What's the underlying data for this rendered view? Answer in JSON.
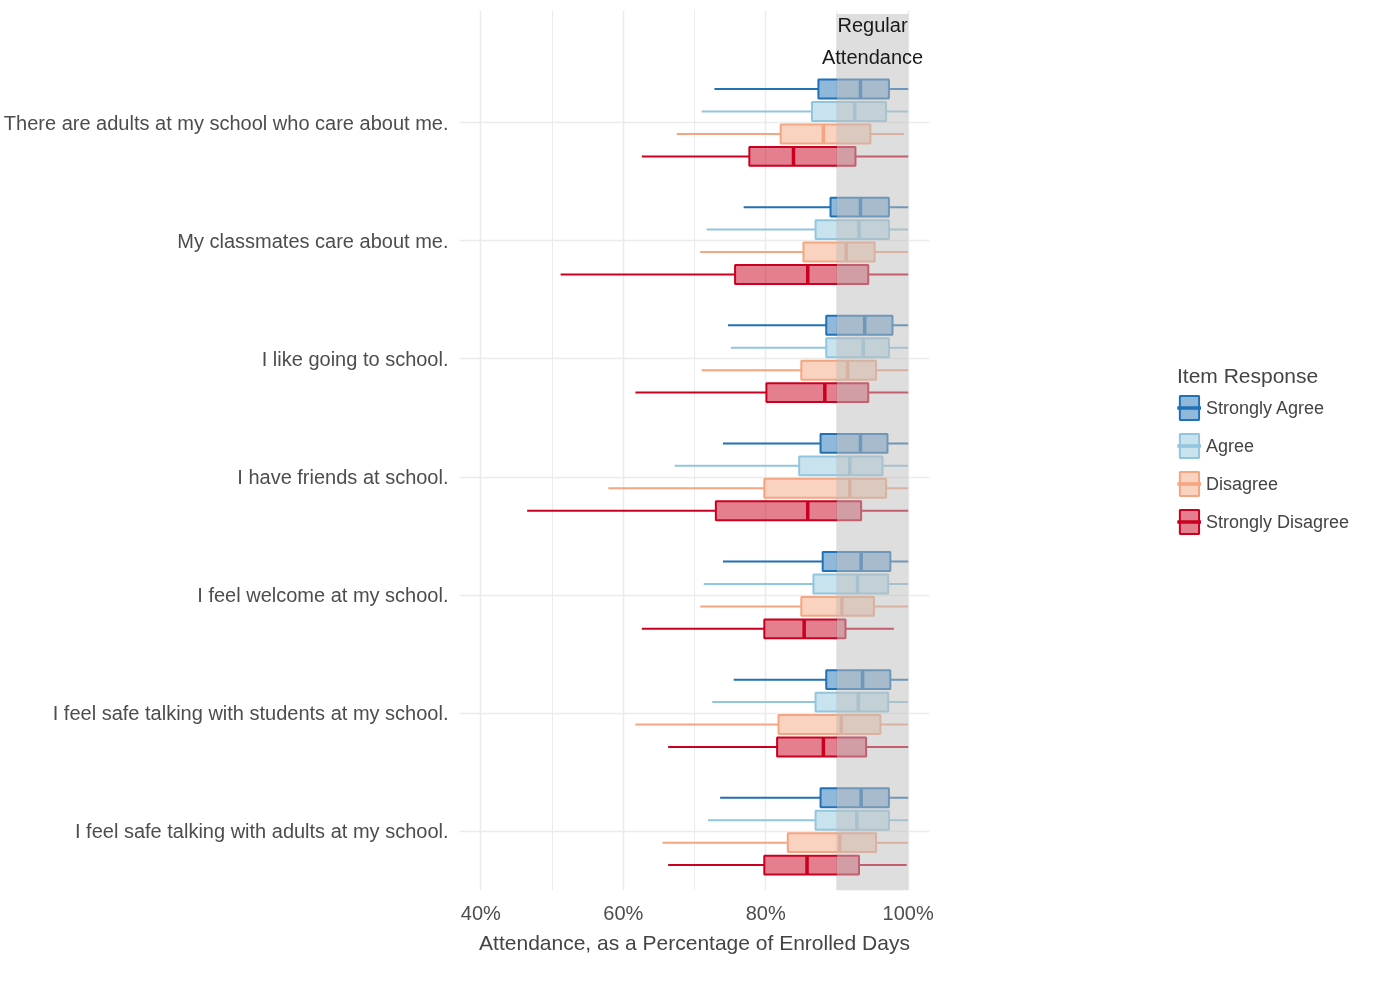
{
  "chart_data": {
    "type": "box",
    "orientation": "horizontal",
    "xlabel": "Attendance, as a Percentage of Enrolled Days",
    "legend_title": "Item Response",
    "categories": [
      "There are adults at my school who care about me.",
      "My classmates care about me.",
      "I like going to school.",
      "I have friends at school.",
      "I feel welcome at my school.",
      "I feel safe talking with students at my school.",
      "I feel safe talking with adults at my school."
    ],
    "xlim": [
      37,
      103
    ],
    "xticks": [
      {
        "value": 40,
        "label": "40%"
      },
      {
        "value": 60,
        "label": "60%"
      },
      {
        "value": 80,
        "label": "80%"
      },
      {
        "value": 100,
        "label": "100%"
      }
    ],
    "grid": true,
    "legend": "right",
    "bands": [
      {
        "axis": "x",
        "from": 90,
        "to": 100,
        "label": "Regular Attendance",
        "color": "#bdbdbd"
      }
    ],
    "series": [
      {
        "name": "Strongly Agree",
        "color": "#2171b5",
        "boxes": [
          {
            "low": 72.8,
            "q1": 87.4,
            "median": 93.3,
            "q3": 97.3,
            "high": 100
          },
          {
            "low": 76.9,
            "q1": 89.1,
            "median": 93.3,
            "q3": 97.3,
            "high": 100
          },
          {
            "low": 74.7,
            "q1": 88.5,
            "median": 93.9,
            "q3": 97.8,
            "high": 100
          },
          {
            "low": 74.0,
            "q1": 87.7,
            "median": 93.3,
            "q3": 97.1,
            "high": 100
          },
          {
            "low": 74.0,
            "q1": 88.0,
            "median": 93.4,
            "q3": 97.5,
            "high": 100
          },
          {
            "low": 75.5,
            "q1": 88.5,
            "median": 93.6,
            "q3": 97.5,
            "high": 100
          },
          {
            "low": 73.6,
            "q1": 87.7,
            "median": 93.4,
            "q3": 97.3,
            "high": 100
          }
        ]
      },
      {
        "name": "Agree",
        "color": "#92c5de",
        "boxes": [
          {
            "low": 71.0,
            "q1": 86.5,
            "median": 92.5,
            "q3": 96.9,
            "high": 100
          },
          {
            "low": 71.7,
            "q1": 87.0,
            "median": 93.1,
            "q3": 97.3,
            "high": 100
          },
          {
            "low": 75.1,
            "q1": 88.5,
            "median": 93.7,
            "q3": 97.3,
            "high": 100
          },
          {
            "low": 67.2,
            "q1": 84.7,
            "median": 91.8,
            "q3": 96.4,
            "high": 100
          },
          {
            "low": 71.3,
            "q1": 86.7,
            "median": 92.9,
            "q3": 97.2,
            "high": 100
          },
          {
            "low": 72.5,
            "q1": 87.0,
            "median": 93.0,
            "q3": 97.2,
            "high": 100
          },
          {
            "low": 71.9,
            "q1": 87.0,
            "median": 92.8,
            "q3": 97.3,
            "high": 100
          }
        ]
      },
      {
        "name": "Disagree",
        "color": "#f4a582",
        "boxes": [
          {
            "low": 67.5,
            "q1": 82.1,
            "median": 88.1,
            "q3": 94.7,
            "high": 99.4
          },
          {
            "low": 70.8,
            "q1": 85.3,
            "median": 91.3,
            "q3": 95.3,
            "high": 100
          },
          {
            "low": 71.0,
            "q1": 85.0,
            "median": 91.5,
            "q3": 95.5,
            "high": 100
          },
          {
            "low": 57.9,
            "q1": 79.8,
            "median": 91.8,
            "q3": 96.9,
            "high": 100
          },
          {
            "low": 70.8,
            "q1": 85.0,
            "median": 90.7,
            "q3": 95.2,
            "high": 100
          },
          {
            "low": 61.7,
            "q1": 81.8,
            "median": 90.6,
            "q3": 96.1,
            "high": 100
          },
          {
            "low": 65.5,
            "q1": 83.1,
            "median": 90.4,
            "q3": 95.5,
            "high": 100
          }
        ]
      },
      {
        "name": "Strongly Disagree",
        "color": "#ca0020",
        "boxes": [
          {
            "low": 62.6,
            "q1": 77.7,
            "median": 83.9,
            "q3": 92.6,
            "high": 100
          },
          {
            "low": 51.2,
            "q1": 75.7,
            "median": 85.9,
            "q3": 94.4,
            "high": 100
          },
          {
            "low": 61.7,
            "q1": 80.1,
            "median": 88.3,
            "q3": 94.4,
            "high": 100
          },
          {
            "low": 46.5,
            "q1": 73.0,
            "median": 85.9,
            "q3": 93.4,
            "high": 100
          },
          {
            "low": 62.6,
            "q1": 79.8,
            "median": 85.4,
            "q3": 91.2,
            "high": 98.0
          },
          {
            "low": 66.3,
            "q1": 81.6,
            "median": 88.1,
            "q3": 94.1,
            "high": 100
          },
          {
            "low": 66.3,
            "q1": 79.8,
            "median": 85.8,
            "q3": 93.1,
            "high": 99.8
          }
        ]
      }
    ]
  }
}
